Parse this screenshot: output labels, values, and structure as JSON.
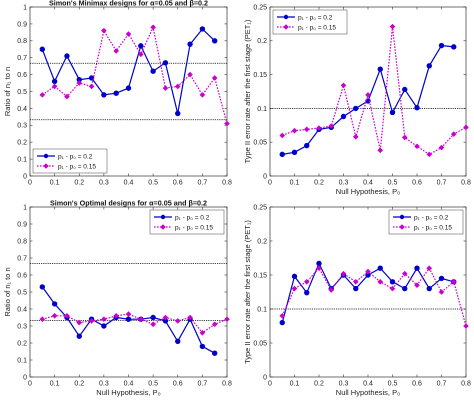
{
  "chart_data": [
    {
      "type": "line",
      "title": "Simon's Minimax designs for α=0.05 and β=0.2",
      "xlabel": "",
      "ylabel": "Ratio of n₁ to n",
      "xlim": [
        0,
        0.8
      ],
      "ylim": [
        0,
        1
      ],
      "xticks": [
        "0",
        "0.1",
        "0.2",
        "0.3",
        "0.4",
        "0.5",
        "0.6",
        "0.7",
        "0.8"
      ],
      "yticks": [
        "0",
        "0.1",
        "0.2",
        "0.3",
        "0.4",
        "0.5",
        "0.6",
        "0.7",
        "0.8",
        "0.9",
        "1"
      ],
      "hlines": [
        0.667,
        0.333
      ],
      "legend_position": "bottom-left",
      "x": [
        0.05,
        0.1,
        0.15,
        0.2,
        0.25,
        0.3,
        0.35,
        0.4,
        0.45,
        0.5,
        0.55,
        0.6,
        0.65,
        0.7,
        0.75,
        0.8
      ],
      "series": [
        {
          "name": "p₁ - p₀ = 0.2",
          "color": "#0000cc",
          "style": "solid",
          "marker": "circle",
          "values": [
            0.75,
            0.56,
            0.71,
            0.57,
            0.58,
            0.48,
            0.49,
            0.52,
            0.77,
            0.62,
            0.67,
            0.37,
            0.78,
            0.87,
            0.8,
            null
          ]
        },
        {
          "name": "p₁ - p₀ = 0.15",
          "color": "#cc00cc",
          "style": "dotted",
          "marker": "diamond",
          "values": [
            0.48,
            0.53,
            0.47,
            0.55,
            0.53,
            0.86,
            0.74,
            0.84,
            0.72,
            0.88,
            0.52,
            0.53,
            0.6,
            0.48,
            0.58,
            0.31
          ]
        }
      ]
    },
    {
      "type": "line",
      "title": "",
      "xlabel": "Null Hypothesis, P₀",
      "ylabel": "Type II error rate after the first stage (PET₁)",
      "xlim": [
        0,
        0.8
      ],
      "ylim": [
        0,
        0.25
      ],
      "xticks": [
        "0",
        "0.1",
        "0.2",
        "0.3",
        "0.4",
        "0.5",
        "0.6",
        "0.7",
        "0.8"
      ],
      "yticks": [
        "0",
        "0.05",
        "0.1",
        "0.15",
        "0.2",
        "0.25"
      ],
      "hlines": [
        0.1
      ],
      "legend_position": "top-left",
      "x": [
        0.05,
        0.1,
        0.15,
        0.2,
        0.25,
        0.3,
        0.35,
        0.4,
        0.45,
        0.5,
        0.55,
        0.6,
        0.65,
        0.7,
        0.75,
        0.8
      ],
      "series": [
        {
          "name": "p₁ - p₀ = 0.2",
          "color": "#0000cc",
          "style": "solid",
          "marker": "circle",
          "values": [
            0.032,
            0.035,
            0.045,
            0.069,
            0.072,
            0.088,
            0.1,
            0.111,
            0.158,
            0.094,
            0.128,
            0.101,
            0.163,
            0.193,
            0.191,
            null
          ]
        },
        {
          "name": "p₁ - p₀ = 0.15",
          "color": "#cc00cc",
          "style": "dotted",
          "marker": "diamond",
          "values": [
            0.06,
            0.067,
            0.069,
            0.071,
            0.074,
            0.134,
            0.058,
            0.12,
            0.038,
            0.221,
            0.057,
            0.044,
            0.032,
            0.042,
            0.062,
            0.072
          ]
        }
      ]
    },
    {
      "type": "line",
      "title": "Simon's Optimal designs for α=0.05 and β=0.2",
      "xlabel": "Null Hypothesis, P₀",
      "ylabel": "Ratio of n₁ to n",
      "xlim": [
        0,
        0.8
      ],
      "ylim": [
        0,
        1
      ],
      "xticks": [
        "0",
        "0.1",
        "0.2",
        "0.3",
        "0.4",
        "0.5",
        "0.6",
        "0.7",
        "0.8"
      ],
      "yticks": [
        "0",
        "0.1",
        "0.2",
        "0.3",
        "0.4",
        "0.5",
        "0.6",
        "0.7",
        "0.8",
        "0.9",
        "1"
      ],
      "hlines": [
        0.667,
        0.333
      ],
      "legend_position": "top-right",
      "x": [
        0.05,
        0.1,
        0.15,
        0.2,
        0.25,
        0.3,
        0.35,
        0.4,
        0.45,
        0.5,
        0.55,
        0.6,
        0.65,
        0.7,
        0.75,
        0.8
      ],
      "series": [
        {
          "name": "p₁ - p₀ = 0.2",
          "color": "#0000cc",
          "style": "solid",
          "marker": "circle",
          "values": [
            0.53,
            0.43,
            0.35,
            0.24,
            0.34,
            0.3,
            0.35,
            0.34,
            0.34,
            0.35,
            0.33,
            0.21,
            0.34,
            0.18,
            0.14,
            null
          ]
        },
        {
          "name": "p₁ - p₀ = 0.15",
          "color": "#cc00cc",
          "style": "dotted",
          "marker": "diamond",
          "values": [
            0.34,
            0.36,
            0.36,
            0.32,
            0.33,
            0.34,
            0.36,
            0.37,
            0.34,
            0.31,
            0.35,
            0.33,
            0.35,
            0.26,
            0.31,
            0.34
          ]
        }
      ]
    },
    {
      "type": "line",
      "title": "",
      "xlabel": "Null Hypothesis, P₀",
      "ylabel": "Type II error rate after the first stage (PET₁)",
      "xlim": [
        0,
        0.8
      ],
      "ylim": [
        0,
        0.25
      ],
      "xticks": [
        "0",
        "0.1",
        "0.2",
        "0.3",
        "0.4",
        "0.5",
        "0.6",
        "0.7",
        "0.8"
      ],
      "yticks": [
        "0",
        "0.05",
        "0.1",
        "0.15",
        "0.2",
        "0.25"
      ],
      "hlines": [
        0.1
      ],
      "legend_position": "top-right",
      "x": [
        0.05,
        0.1,
        0.15,
        0.2,
        0.25,
        0.3,
        0.35,
        0.4,
        0.45,
        0.5,
        0.55,
        0.6,
        0.65,
        0.7,
        0.75,
        0.8
      ],
      "series": [
        {
          "name": "p₁ - p₀ = 0.2",
          "color": "#0000cc",
          "style": "solid",
          "marker": "circle",
          "values": [
            0.08,
            0.148,
            0.124,
            0.167,
            0.13,
            0.15,
            0.13,
            0.15,
            0.16,
            0.14,
            0.13,
            0.16,
            0.13,
            0.145,
            0.14,
            null
          ]
        },
        {
          "name": "p₁ - p₀ = 0.15",
          "color": "#cc00cc",
          "style": "dotted",
          "marker": "diamond",
          "values": [
            0.09,
            0.13,
            0.14,
            0.16,
            0.128,
            0.152,
            0.14,
            0.155,
            0.14,
            0.13,
            0.152,
            0.135,
            0.16,
            0.125,
            0.14,
            0.075
          ]
        }
      ]
    }
  ]
}
